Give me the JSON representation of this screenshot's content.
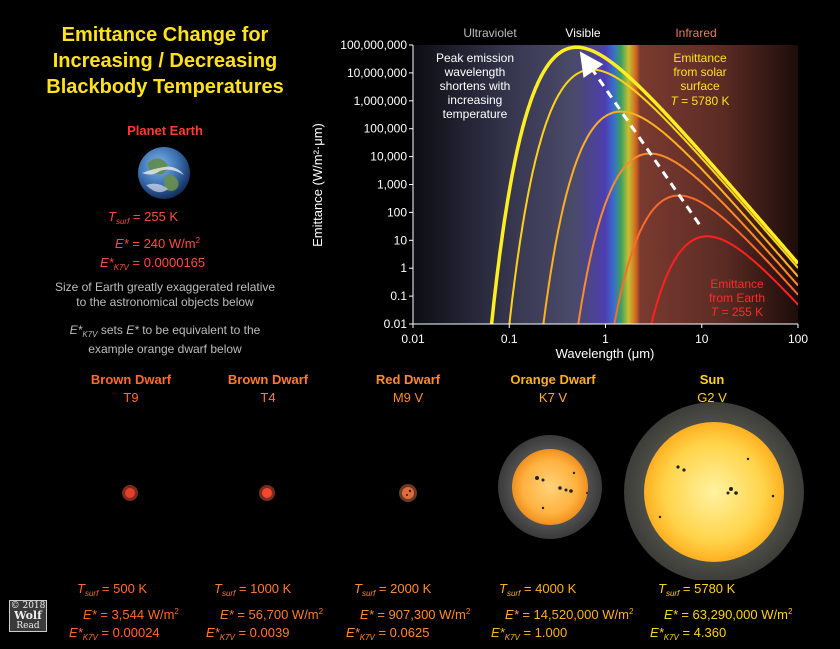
{
  "title": [
    "Emittance Change for",
    "Increasing / Decreasing",
    "Blackbody Temperatures"
  ],
  "earth": {
    "heading": "Planet Earth",
    "t_label": "T",
    "t_sub": "surf",
    "t_value": "= 255 K",
    "e_label": "E*",
    "e_value": "= 240 W/m",
    "e_sup": "2",
    "k_label": "E*",
    "k_sub": "K7V",
    "k_value": "= 0.0000165"
  },
  "notes": {
    "size_line1": "Size of Earth greatly exaggerated relative",
    "size_line2": "to the astronomical objects below",
    "ek_prefix": "E*",
    "ek_sub": "K7V",
    "ek_mid": "sets",
    "ek_e": "E*",
    "ek_rest": "to be equivalent to the",
    "ek_line2": "example orange dwarf below"
  },
  "objects": [
    {
      "name": "Brown Dwarf",
      "class": "T9",
      "color": "#ff6a2a",
      "t": "= 500 K",
      "e": "= 3,544 W/m",
      "k": "= 0.00024"
    },
    {
      "name": "Brown Dwarf",
      "class": "T4",
      "color": "#ff7a2a",
      "t": "= 1000 K",
      "e": "= 56,700 W/m",
      "k": "= 0.0039"
    },
    {
      "name": "Red Dwarf",
      "class": "M9 V",
      "color": "#ff8a2a",
      "t": "= 2000 K",
      "e": "= 907,300 W/m",
      "k": "= 0.0625"
    },
    {
      "name": "Orange Dwarf",
      "class": "K7 V",
      "color": "#ffb020",
      "t": "= 4000 K",
      "e": "= 14,520,000 W/m",
      "k": "= 1.000"
    },
    {
      "name": "Sun",
      "class": "G2 V",
      "color": "#ffd21a",
      "t": "= 5780 K",
      "e": "= 63,290,000 W/m",
      "k": "= 4.360"
    }
  ],
  "value_labels": {
    "t": "T",
    "t_sub": "surf",
    "e": "E*",
    "e_sup": "2",
    "k": "E*",
    "k_sub": "K7V"
  },
  "logo": {
    "line1": "© 2018",
    "line2": "Wolf",
    "line3": "Read"
  },
  "chart_data": {
    "type": "line",
    "xlabel": "Wavelength (μm)",
    "ylabel": "Emittance (W/m²·μm)",
    "x_scale": "log",
    "y_scale": "log",
    "xlim": [
      0.01,
      100
    ],
    "ylim": [
      0.01,
      100000000
    ],
    "x_ticks": [
      "0.01",
      "0.1",
      "1",
      "10",
      "100"
    ],
    "y_ticks": [
      "0.01",
      "0.1",
      "1",
      "10",
      "100",
      "1,000",
      "10,000",
      "100,000",
      "1,000,000",
      "10,000,000",
      "100,000,000"
    ],
    "band_labels": [
      "Ultraviolet",
      "Visible",
      "Infrared"
    ],
    "series": [
      {
        "temperature_K": 5780,
        "color": "#ffee22",
        "peak_um": 0.501,
        "peak_value": 83000000
      },
      {
        "temperature_K": 4000,
        "color": "#ffd21a",
        "peak_um": 0.72,
        "peak_value": 13700000
      },
      {
        "temperature_K": 2000,
        "color": "#ffb020",
        "peak_um": 1.45,
        "peak_value": 430000
      },
      {
        "temperature_K": 1000,
        "color": "#ff8a2a",
        "peak_um": 2.9,
        "peak_value": 13400
      },
      {
        "temperature_K": 500,
        "color": "#ff6a2a",
        "peak_um": 5.8,
        "peak_value": 420
      },
      {
        "temperature_K": 255,
        "color": "#ff2020",
        "peak_um": 11.4,
        "peak_value": 14
      }
    ],
    "annotations": {
      "peak_note": [
        "Peak emission",
        "wavelength",
        "shortens with",
        "increasing",
        "temperature"
      ],
      "sun_note": [
        "Emittance",
        "from solar",
        "surface"
      ],
      "sun_temp": "= 5780 K",
      "sun_t": "T",
      "earth_note": [
        "Emittance",
        "from Earth"
      ],
      "earth_temp": "= 255 K",
      "earth_t": "T"
    }
  }
}
